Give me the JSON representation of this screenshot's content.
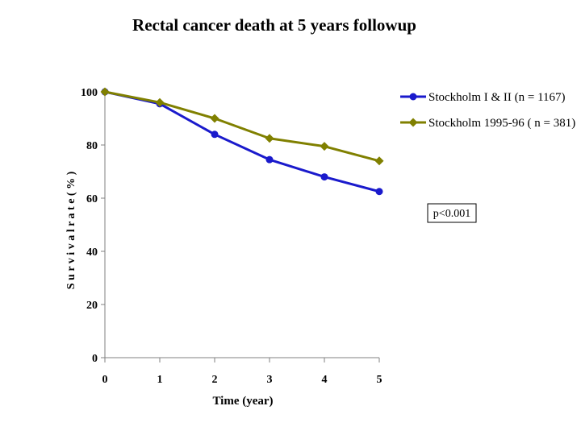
{
  "chart_data": {
    "type": "line",
    "title": "Rectal cancer death at 5 years followup",
    "xlabel": "Time (year)",
    "ylabel": "S u r v i v a l   r a t e   ( % )",
    "x": [
      0,
      1,
      2,
      3,
      4,
      5
    ],
    "x_ticks": [
      "0",
      "1",
      "2",
      "3",
      "4",
      "5"
    ],
    "y_ticks": [
      "0",
      "20",
      "40",
      "60",
      "80",
      "100"
    ],
    "xlim": [
      0,
      5
    ],
    "ylim": [
      0,
      100
    ],
    "grid": false,
    "legend_position": "top-right",
    "series": [
      {
        "name": "Stockholm I & II (n = 1167)",
        "color": "#1a1acc",
        "marker": "circle",
        "values": [
          100,
          95.5,
          84,
          74.5,
          68,
          62.5
        ]
      },
      {
        "name": "Stockholm 1995-96 ( n = 381)",
        "color": "#808000",
        "marker": "diamond",
        "values": [
          100,
          96,
          90,
          82.5,
          79.5,
          74
        ]
      }
    ],
    "annotations": [
      {
        "text": "p<0.001"
      }
    ]
  }
}
